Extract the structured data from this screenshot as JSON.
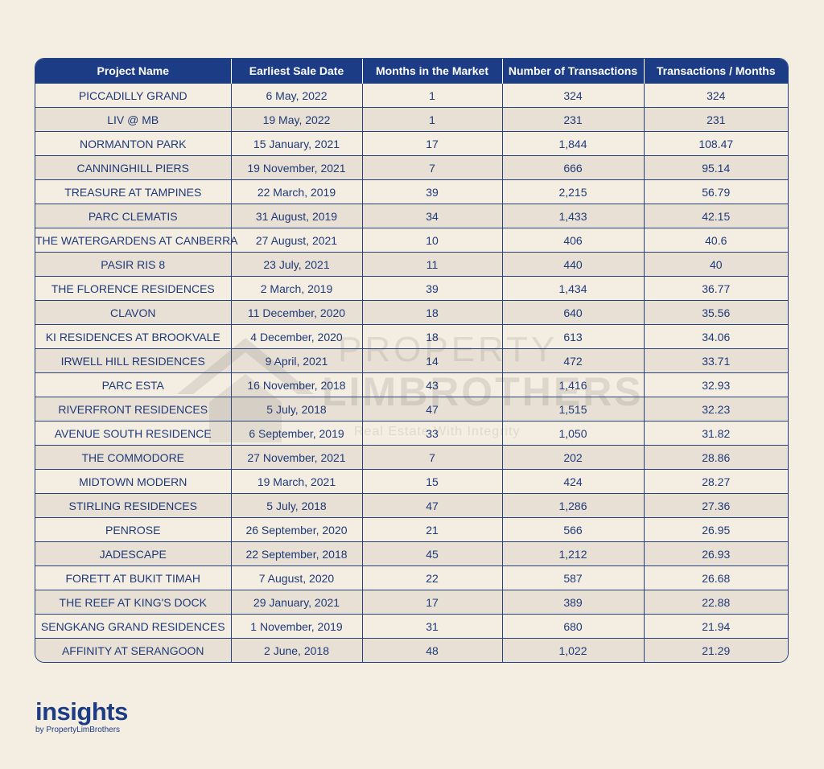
{
  "table": {
    "headers": [
      "Project Name",
      "Earliest Sale Date",
      "Months in the Market",
      "Number of Transactions",
      "Transactions / Months"
    ],
    "rows": [
      [
        "PICCADILLY GRAND",
        "6 May, 2022",
        "1",
        "324",
        "324"
      ],
      [
        "LIV @ MB",
        "19 May, 2022",
        "1",
        "231",
        "231"
      ],
      [
        "NORMANTON PARK",
        "15 January, 2021",
        "17",
        "1,844",
        "108.47"
      ],
      [
        "CANNINGHILL PIERS",
        "19 November, 2021",
        "7",
        "666",
        "95.14"
      ],
      [
        "TREASURE AT TAMPINES",
        "22 March, 2019",
        "39",
        "2,215",
        "56.79"
      ],
      [
        "PARC CLEMATIS",
        "31 August, 2019",
        "34",
        "1,433",
        "42.15"
      ],
      [
        "THE WATERGARDENS AT CANBERRA",
        "27 August, 2021",
        "10",
        "406",
        "40.6"
      ],
      [
        "PASIR RIS 8",
        "23 July, 2021",
        "11",
        "440",
        "40"
      ],
      [
        "THE FLORENCE RESIDENCES",
        "2 March, 2019",
        "39",
        "1,434",
        "36.77"
      ],
      [
        "CLAVON",
        "11 December, 2020",
        "18",
        "640",
        "35.56"
      ],
      [
        "KI RESIDENCES AT BROOKVALE",
        "4 December, 2020",
        "18",
        "613",
        "34.06"
      ],
      [
        "IRWELL HILL RESIDENCES",
        "9 April, 2021",
        "14",
        "472",
        "33.71"
      ],
      [
        "PARC ESTA",
        "16 November, 2018",
        "43",
        "1,416",
        "32.93"
      ],
      [
        "RIVERFRONT RESIDENCES",
        "5 July, 2018",
        "47",
        "1,515",
        "32.23"
      ],
      [
        "AVENUE SOUTH RESIDENCE",
        "6 September, 2019",
        "33",
        "1,050",
        "31.82"
      ],
      [
        "THE COMMODORE",
        "27 November, 2021",
        "7",
        "202",
        "28.86"
      ],
      [
        "MIDTOWN MODERN",
        "19 March, 2021",
        "15",
        "424",
        "28.27"
      ],
      [
        "STIRLING RESIDENCES",
        "5 July, 2018",
        "47",
        "1,286",
        "27.36"
      ],
      [
        "PENROSE",
        "26 September, 2020",
        "21",
        "566",
        "26.95"
      ],
      [
        "JADESCAPE",
        "22 September, 2018",
        "45",
        "1,212",
        "26.93"
      ],
      [
        "FORETT AT BUKIT TIMAH",
        "7 August, 2020",
        "22",
        "587",
        "26.68"
      ],
      [
        "THE REEF AT KING'S DOCK",
        "29 January, 2021",
        "17",
        "389",
        "22.88"
      ],
      [
        "SENGKANG GRAND RESIDENCES",
        "1 November, 2019",
        "31",
        "680",
        "21.94"
      ],
      [
        "AFFINITY AT SERANGOON",
        "2 June, 2018",
        "48",
        "1,022",
        "21.29"
      ]
    ]
  },
  "watermark": {
    "line1": "PROPERTY",
    "line2": "LIMBROTHERS",
    "line3": "Real Estate With Integrity"
  },
  "brand": {
    "main": "insights",
    "sub": "by PropertyLimBrothers"
  },
  "colors": {
    "header_bg": "#1d3c86",
    "text": "#1f3a78",
    "page_bg": "#f4ede1",
    "stripe_bg": "#e8e0d4"
  }
}
